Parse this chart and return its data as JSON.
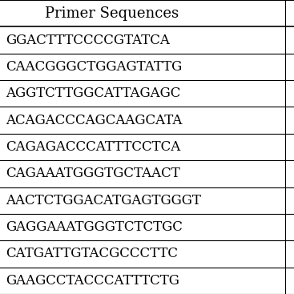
{
  "header": "Primer Sequences",
  "rows": [
    "GGACTTTCCCCGTATCA",
    "CAACGGGCTGGAGTATTG",
    "AGGTCTTGGCATTAGAGC",
    "ACAGACCCAGCAAGCATA",
    "CAGAGACCCATTTCCTCA",
    "CAGAAATGGGTGCTAACT",
    "AACTCTGGACATGAGTGGGT",
    "GAGGAAATGGGTCTCTGC",
    "CATGATTGTACGCCCTTC",
    "GAAGCCTACCCATTTCTG"
  ],
  "bg_color": "#ffffff",
  "text_color": "#000000",
  "line_color": "#000000",
  "header_fontsize": 13,
  "row_fontsize": 12,
  "fig_width": 3.67,
  "fig_height": 3.67
}
